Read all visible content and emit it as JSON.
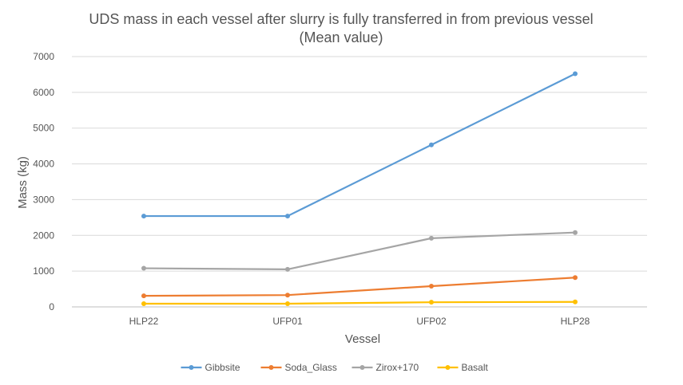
{
  "chart_data": {
    "type": "line",
    "title": "UDS mass in each vessel after slurry is fully transferred in from previous vessel",
    "subtitle": "(Mean value)",
    "xlabel": "Vessel",
    "ylabel": "Mass (kg)",
    "categories": [
      "HLP22",
      "UFP01",
      "UFP02",
      "HLP28"
    ],
    "ylim": [
      0,
      7000
    ],
    "yticks": [
      0,
      1000,
      2000,
      3000,
      4000,
      5000,
      6000,
      7000
    ],
    "grid": true,
    "legend_position": "bottom",
    "series": [
      {
        "name": "Gibbsite",
        "color": "#5b9bd5",
        "values": [
          2540,
          2540,
          4530,
          6520
        ]
      },
      {
        "name": "Soda_Glass",
        "color": "#ed7d31",
        "values": [
          310,
          330,
          580,
          820
        ]
      },
      {
        "name": "Zirox+170",
        "color": "#a5a5a5",
        "values": [
          1080,
          1050,
          1920,
          2080
        ]
      },
      {
        "name": "Basalt",
        "color": "#ffc000",
        "values": [
          90,
          90,
          130,
          140
        ]
      }
    ]
  }
}
